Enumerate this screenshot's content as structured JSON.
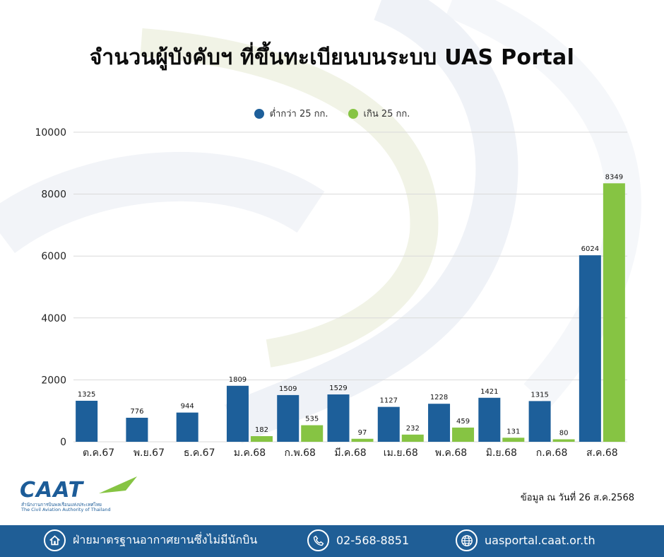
{
  "title": "จำนวนผู้บังคับฯ ที่ขึ้นทะเบียนบนระบบ UAS Portal",
  "source_note": "ข้อมูล ณ วันที่ 26 ส.ค.2568",
  "logo": {
    "text": "CAAT",
    "line1": "สำนักงานการบินพลเรือนแห่งประเทศไทย",
    "line2": "The Civil Aviation Authority of Thailand"
  },
  "footer": {
    "department": "ฝ่ายมาตรฐานอากาศยานซึ่งไม่มีนักบิน",
    "phone": "02-568-8851",
    "website": "uasportal.caat.or.th",
    "icons": [
      "home-icon",
      "phone-icon",
      "globe-icon"
    ]
  },
  "colors": {
    "series1": "#1d5f9a",
    "series2": "#86c443",
    "footer_bg": "#1f5e96",
    "grid": "#d9d9d9"
  },
  "chart_data": {
    "type": "bar",
    "title": "จำนวนผู้บังคับฯ ที่ขึ้นทะเบียนบนระบบ UAS Portal",
    "xlabel": "",
    "ylabel": "",
    "categories": [
      "ต.ค.67",
      "พ.ย.67",
      "ธ.ค.67",
      "ม.ค.68",
      "ก.พ.68",
      "มี.ค.68",
      "เม.ย.68",
      "พ.ค.68",
      "มิ.ย.68",
      "ก.ค.68",
      "ส.ค.68"
    ],
    "series": [
      {
        "name": "ต่ำกว่า 25 กก.",
        "values": [
          1325,
          776,
          944,
          1809,
          1509,
          1529,
          1127,
          1228,
          1421,
          1315,
          6024
        ]
      },
      {
        "name": "เกิน 25 กก.",
        "values": [
          null,
          null,
          null,
          182,
          535,
          97,
          232,
          459,
          131,
          80,
          8349
        ]
      }
    ],
    "ylim": [
      0,
      10000
    ],
    "yticks": [
      0,
      2000,
      4000,
      6000,
      8000,
      10000
    ],
    "grid": true,
    "legend_position": "top-center"
  }
}
